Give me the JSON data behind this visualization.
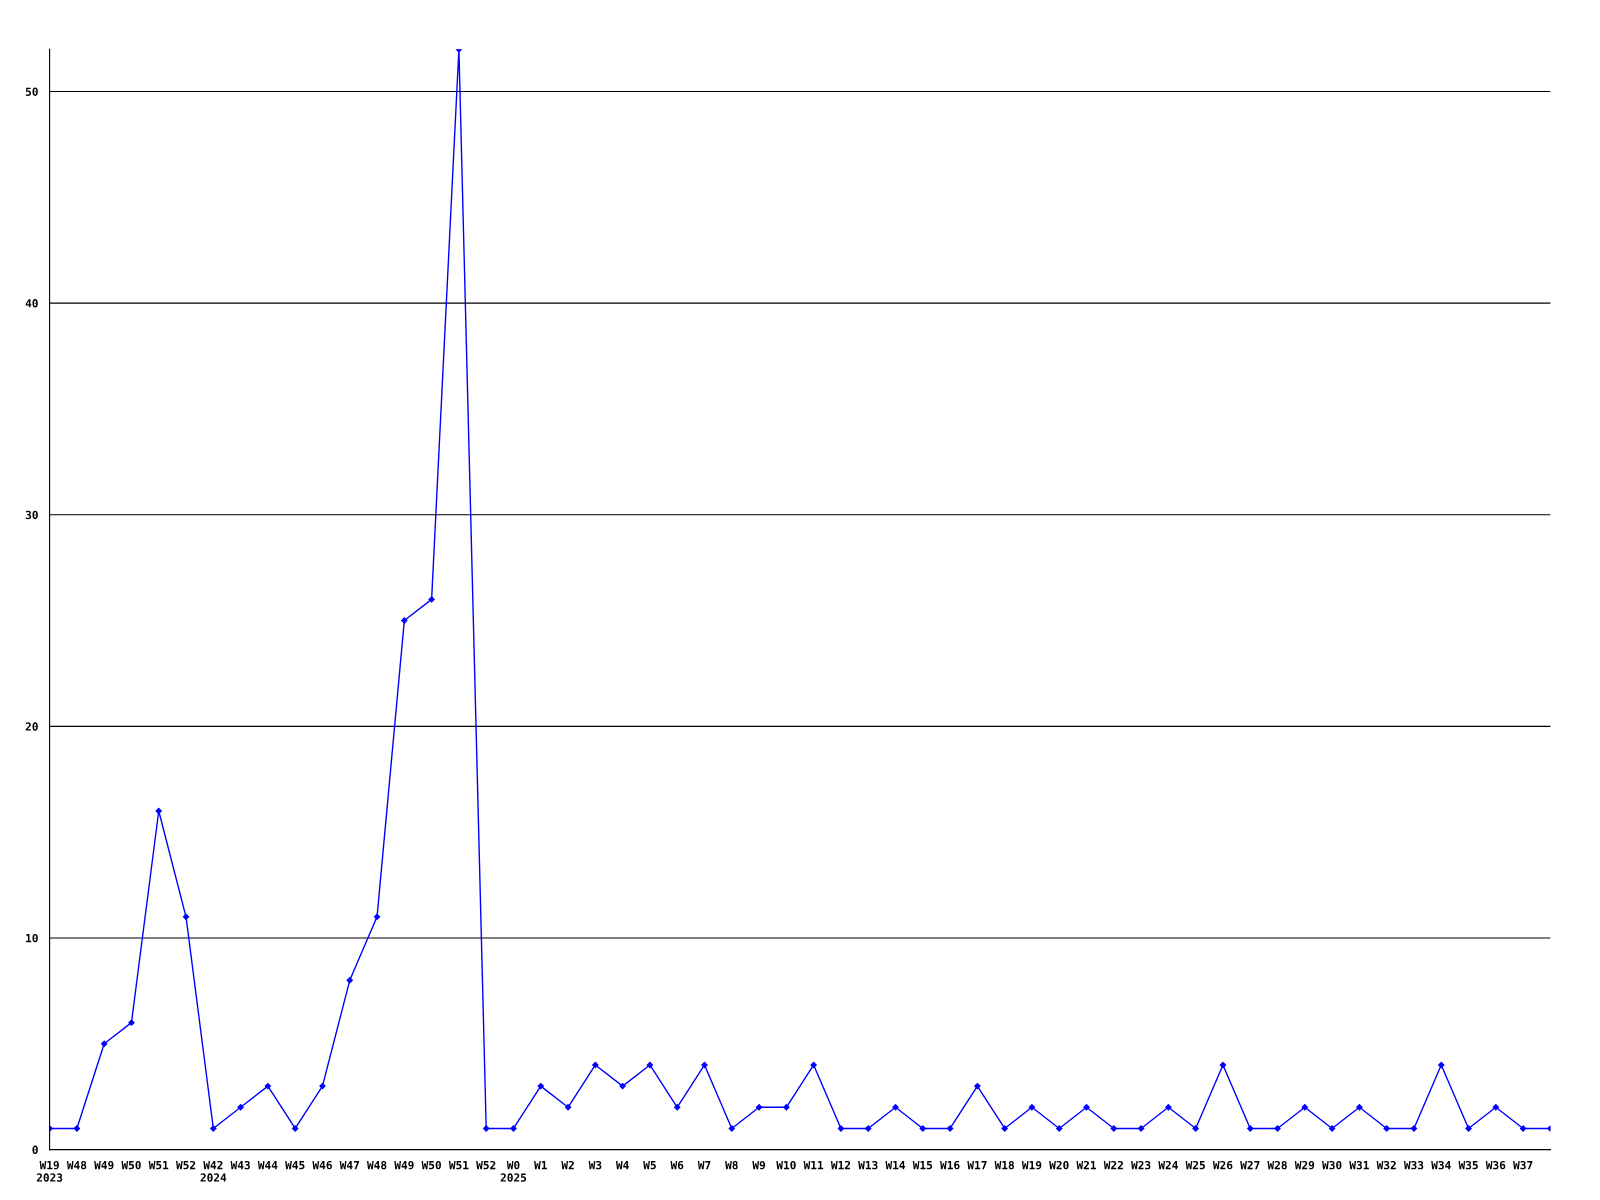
{
  "chart_data": {
    "type": "line",
    "categories": [
      "W19\n2023",
      "W48",
      "W49",
      "W50",
      "W51",
      "W52",
      "W42\n2024",
      "W43",
      "W44",
      "W45",
      "W46",
      "W47",
      "W48",
      "W49",
      "W50",
      "W51",
      "W52",
      "W0\n2025",
      "W1",
      "W2",
      "W3",
      "W4",
      "W5",
      "W6",
      "W7",
      "W8",
      "W9",
      "W10",
      "W11",
      "W12",
      "W13",
      "W14",
      "W15",
      "W16",
      "W17",
      "W18",
      "W19",
      "W20",
      "W21",
      "W22",
      "W23",
      "W24",
      "W25",
      "W26",
      "W27",
      "W28",
      "W29",
      "W30",
      "W31",
      "W32",
      "W33",
      "W34",
      "W35",
      "W36",
      "W37",
      null
    ],
    "series": [
      {
        "color": "#0000ff",
        "values": [
          1,
          1,
          5,
          6,
          16,
          11,
          1,
          2,
          3,
          1,
          3,
          8,
          11,
          25,
          26,
          52,
          1,
          1,
          3,
          2,
          4,
          3,
          4,
          2,
          4,
          1,
          2,
          2,
          4,
          1,
          1,
          2,
          1,
          1,
          3,
          1,
          2,
          1,
          2,
          1,
          1,
          2,
          1,
          4,
          1,
          1,
          2,
          1,
          2,
          1,
          1,
          4,
          1,
          2,
          1,
          1
        ]
      }
    ],
    "ylim": [
      0,
      52
    ],
    "yticks": [
      0,
      10,
      20,
      30,
      40,
      50
    ],
    "grid": "y",
    "marker": "diamond",
    "line_style": "solid",
    "legend": false
  }
}
